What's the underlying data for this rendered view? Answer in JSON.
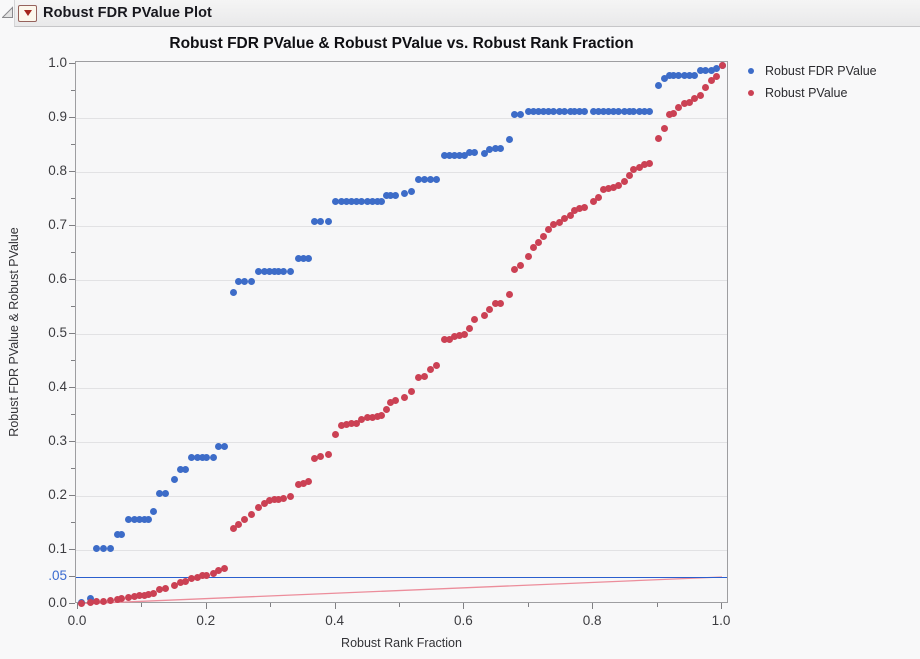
{
  "window": {
    "title": "Robust FDR PValue Plot",
    "disclosure_icon": "open-disclosure-triangle",
    "menu_icon": "red-triangle-menu"
  },
  "colors": {
    "fdr_blue": "#3D6CC8",
    "pvalue_red": "#CB4154",
    "ref_blue": "#2B5FCE",
    "ref_red": "#EC8D9B",
    "grid": "#E2E2E4",
    "frame": "#9E9EA1",
    "tick": "#7F7F83",
    "tick_label": "#3C3C40",
    "alpha_label": "#3B6BD0"
  },
  "chart_data": {
    "type": "scatter",
    "title": "Robust FDR PValue & Robust PValue vs. Robust Rank Fraction",
    "xlabel": "Robust Rank Fraction",
    "ylabel": "Robust FDR PValue & Robust PValue",
    "xlim": [
      0,
      1
    ],
    "ylim": [
      0,
      1
    ],
    "grid": "horizontal-only",
    "y_gridlines": [
      0.1,
      0.2,
      0.3,
      0.4,
      0.5,
      0.6,
      0.7,
      0.8,
      0.9
    ],
    "x_ticks": {
      "major": [
        {
          "v": 0.0,
          "label": "0.0"
        },
        {
          "v": 0.2,
          "label": "0.2"
        },
        {
          "v": 0.4,
          "label": "0.4"
        },
        {
          "v": 0.6,
          "label": "0.6"
        },
        {
          "v": 0.8,
          "label": "0.8"
        },
        {
          "v": 1.0,
          "label": "1.0"
        }
      ],
      "minor": [
        0.1,
        0.3,
        0.5,
        0.7,
        0.9
      ]
    },
    "y_ticks": {
      "major": [
        {
          "v": 0.0,
          "label": "0.0"
        },
        {
          "v": 0.05,
          "label": ".05",
          "special": "alpha"
        },
        {
          "v": 0.1,
          "label": "0.1"
        },
        {
          "v": 0.2,
          "label": "0.2"
        },
        {
          "v": 0.3,
          "label": "0.3"
        },
        {
          "v": 0.4,
          "label": "0.4"
        },
        {
          "v": 0.5,
          "label": "0.5"
        },
        {
          "v": 0.6,
          "label": "0.6"
        },
        {
          "v": 0.7,
          "label": "0.7"
        },
        {
          "v": 0.8,
          "label": "0.8"
        },
        {
          "v": 0.9,
          "label": "0.9"
        },
        {
          "v": 1.0,
          "label": "1.0"
        }
      ],
      "minor": [
        0.15,
        0.25,
        0.35,
        0.45,
        0.55,
        0.65,
        0.75,
        0.85,
        0.95
      ]
    },
    "ref_lines": [
      {
        "kind": "horizontal",
        "y": 0.05,
        "color_key": "ref_blue",
        "meaning": "alpha = .05"
      },
      {
        "kind": "segment",
        "x1": 0,
        "y1": 0,
        "x2": 1,
        "y2": 0.05,
        "color_key": "ref_red",
        "meaning": "FDR rejection line"
      }
    ],
    "legend": {
      "position": "right",
      "entries": [
        {
          "label": "Robust FDR PValue",
          "color_key": "fdr_blue"
        },
        {
          "label": "Robust PValue",
          "color_key": "pvalue_red"
        }
      ]
    },
    "x": [
      0.005,
      0.019,
      0.028,
      0.04,
      0.05,
      0.061,
      0.068,
      0.079,
      0.087,
      0.095,
      0.103,
      0.11,
      0.118,
      0.126,
      0.136,
      0.15,
      0.159,
      0.167,
      0.177,
      0.185,
      0.193,
      0.199,
      0.21,
      0.218,
      0.227,
      0.241,
      0.249,
      0.258,
      0.269,
      0.28,
      0.289,
      0.297,
      0.305,
      0.311,
      0.319,
      0.33,
      0.342,
      0.35,
      0.358,
      0.367,
      0.376,
      0.389,
      0.4,
      0.409,
      0.417,
      0.425,
      0.432,
      0.44,
      0.449,
      0.457,
      0.465,
      0.471,
      0.479,
      0.485,
      0.493,
      0.507,
      0.518,
      0.529,
      0.538,
      0.547,
      0.557,
      0.569,
      0.577,
      0.585,
      0.592,
      0.6,
      0.608,
      0.615,
      0.631,
      0.639,
      0.648,
      0.656,
      0.67,
      0.678,
      0.687,
      0.7,
      0.707,
      0.715,
      0.723,
      0.731,
      0.739,
      0.748,
      0.756,
      0.764,
      0.771,
      0.779,
      0.787,
      0.801,
      0.809,
      0.816,
      0.824,
      0.832,
      0.84,
      0.848,
      0.856,
      0.863,
      0.872,
      0.88,
      0.888,
      0.902,
      0.91,
      0.918,
      0.925,
      0.933,
      0.941,
      0.95,
      0.958,
      0.966,
      0.975,
      0.983,
      0.992,
      1.0
    ],
    "series": [
      {
        "name": "Robust FDR PValue",
        "color_key": "fdr_blue",
        "y": [
          0.003,
          0.011,
          0.103,
          0.103,
          0.103,
          0.129,
          0.129,
          0.156,
          0.156,
          0.156,
          0.156,
          0.156,
          0.171,
          0.204,
          0.204,
          0.231,
          0.25,
          0.25,
          0.271,
          0.271,
          0.271,
          0.271,
          0.272,
          0.291,
          0.291,
          0.576,
          0.597,
          0.597,
          0.597,
          0.615,
          0.615,
          0.615,
          0.615,
          0.615,
          0.615,
          0.615,
          0.639,
          0.639,
          0.639,
          0.709,
          0.709,
          0.709,
          0.746,
          0.746,
          0.746,
          0.746,
          0.746,
          0.746,
          0.746,
          0.746,
          0.746,
          0.746,
          0.757,
          0.757,
          0.757,
          0.761,
          0.764,
          0.787,
          0.787,
          0.787,
          0.787,
          0.83,
          0.83,
          0.83,
          0.83,
          0.83,
          0.836,
          0.836,
          0.835,
          0.842,
          0.844,
          0.844,
          0.861,
          0.907,
          0.907,
          0.912,
          0.912,
          0.912,
          0.912,
          0.912,
          0.912,
          0.912,
          0.912,
          0.912,
          0.912,
          0.912,
          0.912,
          0.912,
          0.912,
          0.912,
          0.912,
          0.912,
          0.912,
          0.912,
          0.912,
          0.912,
          0.912,
          0.912,
          0.912,
          0.96,
          0.973,
          0.978,
          0.978,
          0.978,
          0.978,
          0.978,
          0.978,
          0.988,
          0.988,
          0.988,
          0.992,
          0.997
        ]
      },
      {
        "name": "Robust PValue",
        "color_key": "pvalue_red",
        "y": [
          0.001,
          0.002,
          0.004,
          0.005,
          0.006,
          0.008,
          0.01,
          0.012,
          0.014,
          0.015,
          0.016,
          0.018,
          0.02,
          0.026,
          0.028,
          0.035,
          0.04,
          0.042,
          0.048,
          0.05,
          0.052,
          0.053,
          0.057,
          0.062,
          0.066,
          0.139,
          0.148,
          0.156,
          0.165,
          0.178,
          0.187,
          0.191,
          0.193,
          0.194,
          0.196,
          0.2,
          0.222,
          0.224,
          0.226,
          0.27,
          0.274,
          0.276,
          0.313,
          0.33,
          0.333,
          0.334,
          0.335,
          0.341,
          0.345,
          0.346,
          0.348,
          0.35,
          0.361,
          0.374,
          0.377,
          0.383,
          0.394,
          0.419,
          0.421,
          0.435,
          0.441,
          0.489,
          0.49,
          0.496,
          0.498,
          0.5,
          0.511,
          0.527,
          0.535,
          0.546,
          0.556,
          0.557,
          0.574,
          0.62,
          0.626,
          0.643,
          0.66,
          0.669,
          0.68,
          0.694,
          0.702,
          0.707,
          0.713,
          0.719,
          0.728,
          0.732,
          0.735,
          0.746,
          0.752,
          0.767,
          0.769,
          0.771,
          0.775,
          0.783,
          0.793,
          0.804,
          0.808,
          0.813,
          0.815,
          0.862,
          0.88,
          0.907,
          0.909,
          0.92,
          0.926,
          0.929,
          0.937,
          0.941,
          0.957,
          0.969,
          0.976,
          0.997
        ]
      }
    ]
  }
}
